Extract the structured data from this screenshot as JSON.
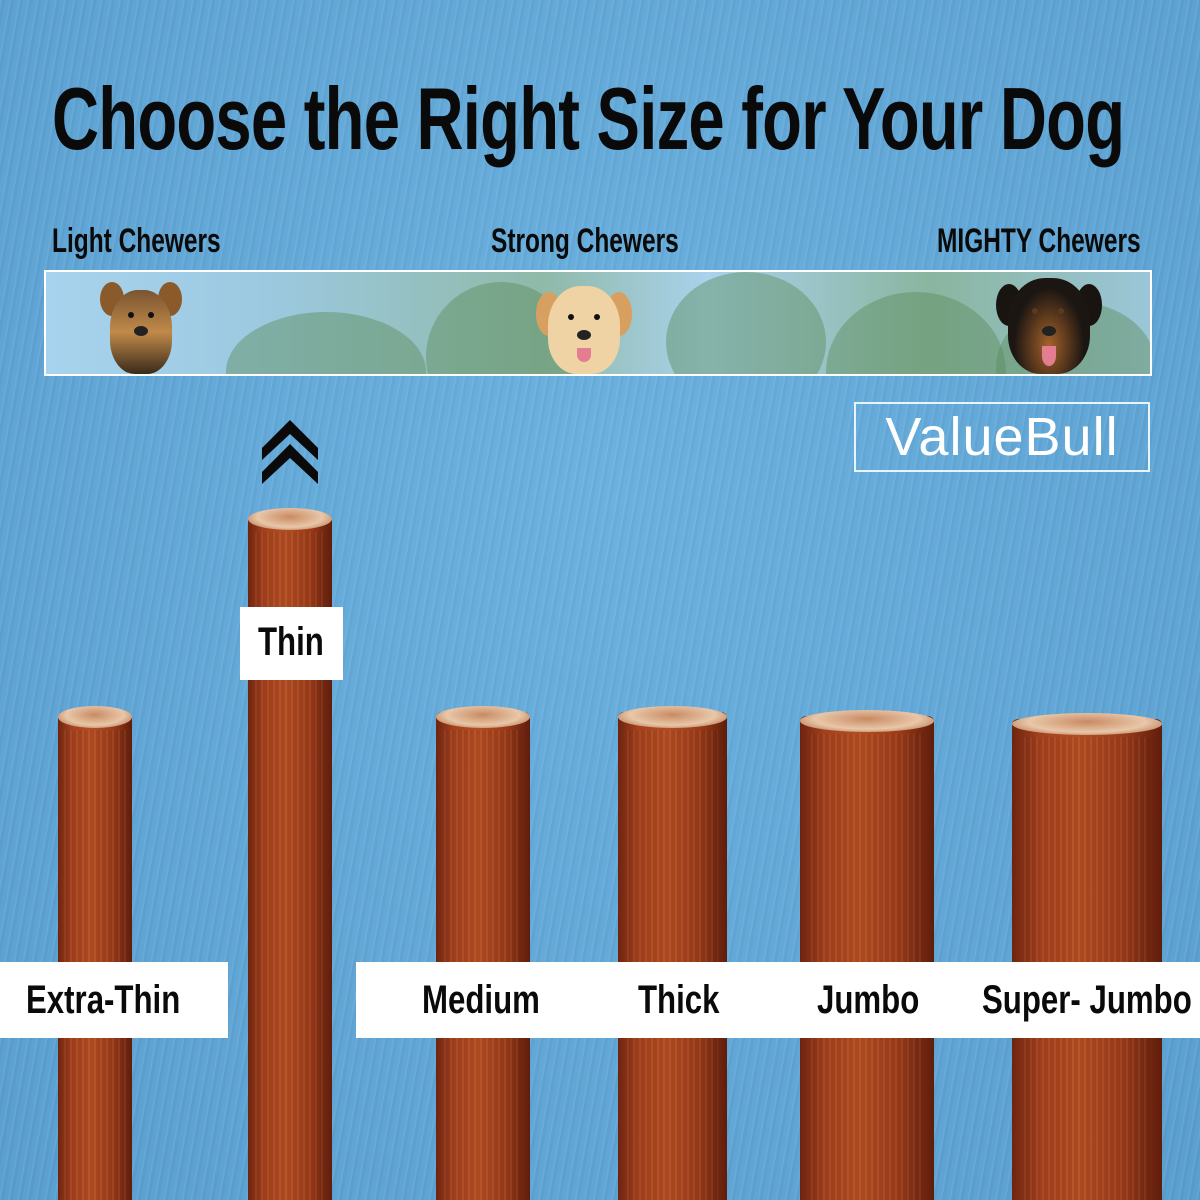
{
  "title": "Choose the Right Size for Your Dog",
  "chewer_scale": {
    "light": "Light Chewers",
    "strong": "Strong Chewers",
    "mighty": "MIGHTY Chewers"
  },
  "brand": "ValueBull",
  "colors": {
    "background": "#62a9d9",
    "stick": "#a3401c",
    "label_bg": "#ffffff",
    "text": "#0a0a0a"
  },
  "sizes": [
    {
      "label": "Extra-Thin"
    },
    {
      "label": "Thin",
      "highlighted": true,
      "indicator_icon": "double-chevron-up-icon"
    },
    {
      "label": "Medium"
    },
    {
      "label": "Thick"
    },
    {
      "label": "Jumbo"
    },
    {
      "label": "Super- Jumbo"
    }
  ]
}
